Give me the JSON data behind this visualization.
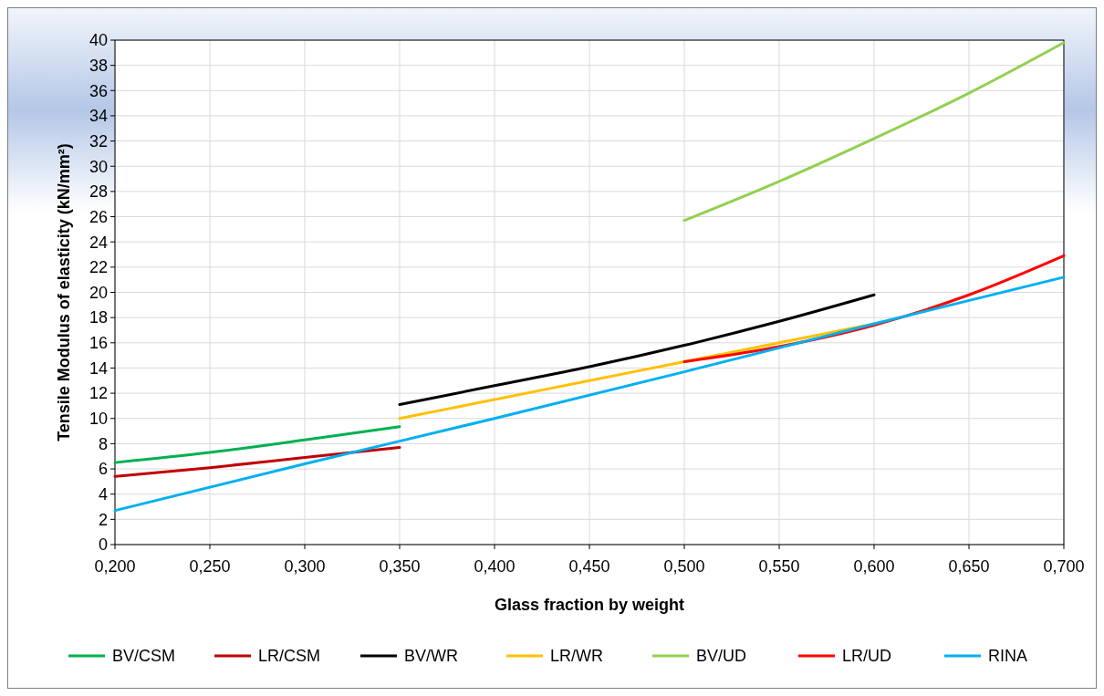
{
  "chart_data": {
    "type": "line",
    "xlabel": "Glass fraction by weight",
    "ylabel": "Tensile Modulus of elasticity (kN/mm²)",
    "xlim": [
      0.2,
      0.7
    ],
    "xticks": [
      {
        "value": 0.2,
        "label": "0,200"
      },
      {
        "value": 0.25,
        "label": "0,250"
      },
      {
        "value": 0.3,
        "label": "0,300"
      },
      {
        "value": 0.35,
        "label": "0,350"
      },
      {
        "value": 0.4,
        "label": "0,400"
      },
      {
        "value": 0.45,
        "label": "0,450"
      },
      {
        "value": 0.5,
        "label": "0,500"
      },
      {
        "value": 0.55,
        "label": "0,550"
      },
      {
        "value": 0.6,
        "label": "0,600"
      },
      {
        "value": 0.65,
        "label": "0,650"
      },
      {
        "value": 0.7,
        "label": "0,700"
      }
    ],
    "ylim": [
      0,
      40
    ],
    "yticks": [
      0,
      2,
      4,
      6,
      8,
      10,
      12,
      14,
      16,
      18,
      20,
      22,
      24,
      26,
      28,
      30,
      32,
      34,
      36,
      38,
      40
    ],
    "grid": true,
    "legend": "bottom",
    "series": [
      {
        "name": "BV/CSM",
        "color": "#00b050",
        "x": [
          0.2,
          0.25,
          0.3,
          0.35
        ],
        "values": [
          6.5,
          7.3,
          8.3,
          9.35
        ]
      },
      {
        "name": "LR/CSM",
        "color": "#c00000",
        "x": [
          0.2,
          0.25,
          0.3,
          0.35
        ],
        "values": [
          5.4,
          6.1,
          6.9,
          7.7
        ]
      },
      {
        "name": "BV/WR",
        "color": "#000000",
        "x": [
          0.35,
          0.4,
          0.45,
          0.5,
          0.55,
          0.6
        ],
        "values": [
          11.1,
          12.6,
          14.1,
          15.8,
          17.7,
          19.8
        ]
      },
      {
        "name": "LR/WR",
        "color": "#ffc000",
        "x": [
          0.35,
          0.4,
          0.45,
          0.5,
          0.55,
          0.6
        ],
        "values": [
          10.0,
          11.5,
          13.0,
          14.5,
          16.0,
          17.5
        ]
      },
      {
        "name": "BV/UD",
        "color": "#92d050",
        "x": [
          0.5,
          0.55,
          0.6,
          0.65,
          0.7
        ],
        "values": [
          25.7,
          28.8,
          32.2,
          35.8,
          39.8
        ]
      },
      {
        "name": "LR/UD",
        "color": "#ff0000",
        "x": [
          0.5,
          0.55,
          0.6,
          0.65,
          0.7
        ],
        "values": [
          14.5,
          15.7,
          17.4,
          19.8,
          22.9
        ]
      },
      {
        "name": "RINA",
        "color": "#00b0f0",
        "x": [
          0.2,
          0.3,
          0.4,
          0.5,
          0.6,
          0.7
        ],
        "values": [
          2.7,
          6.4,
          10.0,
          13.7,
          17.5,
          21.2
        ]
      }
    ]
  }
}
